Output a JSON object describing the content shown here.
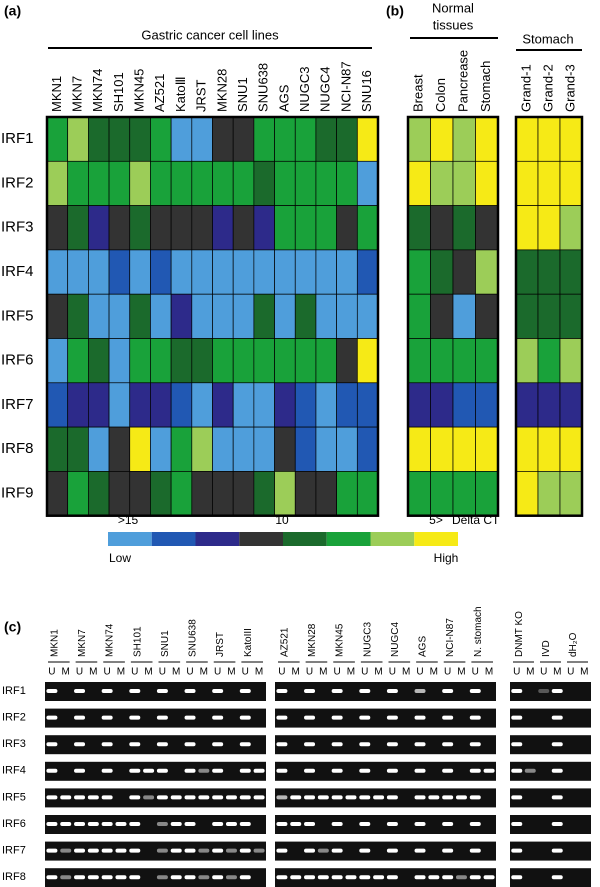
{
  "panel_a": {
    "label": "(a)",
    "title": "Gastric cancer cell lines",
    "columns": [
      "MKN1",
      "MKN7",
      "MKN74",
      "SH101",
      "MKN45",
      "AZ521",
      "KatoⅢ",
      "JRST",
      "MKN28",
      "SNU1",
      "SNU638",
      "AGS",
      "NUGC3",
      "NUGC4",
      "NCI-N87",
      "SNU16"
    ],
    "rows": [
      "IRF1",
      "IRF2",
      "IRF3",
      "IRF4",
      "IRF5",
      "IRF6",
      "IRF7",
      "IRF8",
      "IRF9"
    ],
    "levels": [
      [
        5,
        6,
        4,
        4,
        4,
        5,
        0,
        0,
        3,
        3,
        5,
        5,
        5,
        4,
        4,
        7
      ],
      [
        6,
        5,
        5,
        5,
        6,
        5,
        5,
        5,
        5,
        5,
        4,
        5,
        5,
        5,
        5,
        0
      ],
      [
        3,
        4,
        2,
        3,
        4,
        3,
        3,
        3,
        2,
        3,
        2,
        5,
        5,
        5,
        3,
        5
      ],
      [
        0,
        0,
        0,
        1,
        0,
        1,
        0,
        0,
        0,
        0,
        0,
        0,
        0,
        0,
        0,
        1
      ],
      [
        3,
        4,
        0,
        0,
        4,
        0,
        2,
        0,
        0,
        0,
        4,
        0,
        4,
        0,
        0,
        0
      ],
      [
        0,
        5,
        4,
        0,
        5,
        5,
        4,
        4,
        5,
        5,
        5,
        5,
        5,
        5,
        3,
        7
      ],
      [
        1,
        2,
        2,
        0,
        2,
        2,
        1,
        0,
        2,
        0,
        0,
        2,
        1,
        0,
        1,
        1
      ],
      [
        4,
        4,
        0,
        3,
        7,
        0,
        5,
        6,
        0,
        0,
        0,
        3,
        1,
        0,
        0,
        1
      ],
      [
        3,
        5,
        4,
        3,
        3,
        4,
        5,
        3,
        3,
        3,
        4,
        6,
        3,
        3,
        5,
        5
      ]
    ]
  },
  "panel_b": {
    "label": "(b)",
    "title": [
      "Normal",
      "tissues"
    ],
    "columns": [
      "Breast",
      "Colon",
      "Pancrease",
      "Stomach"
    ],
    "levels": [
      [
        6,
        7,
        6,
        7
      ],
      [
        7,
        6,
        6,
        7
      ],
      [
        4,
        3,
        4,
        3
      ],
      [
        5,
        4,
        3,
        6
      ],
      [
        5,
        3,
        0,
        3
      ],
      [
        5,
        5,
        5,
        5
      ],
      [
        2,
        2,
        1,
        1
      ],
      [
        7,
        7,
        7,
        7
      ],
      [
        5,
        5,
        5,
        5
      ]
    ]
  },
  "panel_stomach": {
    "title": "Stomach",
    "columns": [
      "Grand-1",
      "Grand-2",
      "Grand-3"
    ],
    "levels": [
      [
        7,
        7,
        7
      ],
      [
        7,
        7,
        7
      ],
      [
        7,
        7,
        6
      ],
      [
        4,
        4,
        4
      ],
      [
        4,
        4,
        4
      ],
      [
        6,
        5,
        6
      ],
      [
        2,
        2,
        2
      ],
      [
        7,
        7,
        7
      ],
      [
        7,
        6,
        6
      ]
    ]
  },
  "legend": {
    "colors": [
      "#4f9edb",
      "#2158b3",
      "#2d2a8a",
      "#333333",
      "#1b6a2c",
      "#19a23a",
      "#9ccd58",
      "#f6ea16"
    ],
    "tick_labels": [
      ">15",
      "10",
      "5>"
    ],
    "unit": "Delta CT",
    "low": "Low",
    "high": "High"
  },
  "panel_c": {
    "label": "(c)",
    "rows": [
      "IRF1",
      "IRF2",
      "IRF3",
      "IRF4",
      "IRF5",
      "IRF6",
      "IRF7",
      "IRF8"
    ],
    "lane_sub": [
      "U",
      "M"
    ],
    "groups": [
      {
        "lanes": [
          "MKN1",
          "MKN7",
          "MKN74",
          "SH101",
          "SNU1",
          "SNU638",
          "JRST",
          "KatoIII"
        ],
        "bands": [
          [
            1,
            0,
            1,
            0,
            1,
            0,
            1,
            0,
            1,
            0,
            1,
            0,
            1,
            0,
            1,
            0
          ],
          [
            1,
            0,
            1,
            0,
            1,
            0,
            1,
            0,
            1,
            0,
            1,
            0,
            1,
            0,
            1,
            0
          ],
          [
            1,
            0,
            1,
            0,
            1,
            0,
            1,
            0,
            1,
            0,
            1,
            0,
            1,
            0,
            1,
            0
          ],
          [
            1,
            0,
            1,
            0,
            1,
            0,
            1,
            1,
            1,
            0,
            1,
            0.5,
            1,
            0,
            1,
            1
          ],
          [
            1,
            1,
            1,
            1,
            1,
            0,
            1,
            0.5,
            1,
            1,
            1,
            1,
            1,
            1,
            1,
            1
          ],
          [
            1,
            1,
            1,
            1,
            1,
            1,
            1,
            0,
            0.5,
            1,
            1,
            0,
            1,
            1,
            1,
            0
          ],
          [
            1,
            0.5,
            1,
            1,
            1,
            1,
            1,
            0,
            0.5,
            1,
            1,
            0.5,
            1,
            0.5,
            1,
            0.5
          ],
          [
            1,
            0.5,
            1,
            1,
            1,
            1,
            1,
            0,
            0.5,
            1,
            1,
            0.5,
            1,
            0.5,
            1,
            0
          ]
        ]
      },
      {
        "lanes": [
          "AZ521",
          "MKN28",
          "MKN45",
          "NUGC3",
          "NUGC4",
          "AGS",
          "NCI-N87",
          "N. stomach"
        ],
        "bands": [
          [
            1,
            0,
            1,
            0,
            1,
            0,
            1,
            0,
            1,
            0,
            0.7,
            0,
            1,
            0,
            1,
            0
          ],
          [
            1,
            0,
            1,
            0,
            1,
            0,
            1,
            0,
            1,
            0,
            1,
            0,
            1,
            0,
            1,
            0
          ],
          [
            1,
            0,
            1,
            0,
            1,
            0,
            1,
            0,
            1,
            0,
            1,
            0,
            1,
            0,
            1,
            0
          ],
          [
            1,
            0,
            1,
            0,
            1,
            0,
            1,
            0,
            1,
            0,
            1,
            0,
            1,
            0,
            1,
            1
          ],
          [
            0.7,
            1,
            1,
            1,
            1,
            1,
            1,
            1,
            1,
            0,
            1,
            1,
            1,
            1,
            1,
            0
          ],
          [
            1,
            1,
            1,
            0,
            1,
            0,
            1,
            0,
            1,
            0,
            1,
            0,
            1,
            0,
            1,
            0
          ],
          [
            1,
            0,
            1,
            0.5,
            1,
            0,
            1,
            0,
            1,
            0,
            1,
            0,
            1,
            0,
            1,
            0
          ],
          [
            1,
            1,
            1,
            1,
            1,
            1,
            1,
            1,
            1,
            0,
            1,
            1,
            1,
            0.5,
            1,
            1
          ]
        ]
      },
      {
        "lanes": [
          "DNMT KO",
          "IVD",
          "dH₂O"
        ],
        "bands": [
          [
            1,
            0,
            0.3,
            1,
            0,
            0
          ],
          [
            1,
            0,
            0,
            1,
            0,
            0
          ],
          [
            1,
            0,
            0,
            1,
            0,
            0
          ],
          [
            1,
            0.5,
            0,
            1,
            0,
            0
          ],
          [
            1,
            0,
            0,
            1,
            0,
            0
          ],
          [
            1,
            0,
            0,
            1,
            0,
            0
          ],
          [
            1,
            0,
            0,
            1,
            0,
            0
          ],
          [
            1,
            0,
            0,
            1,
            0,
            0
          ]
        ]
      }
    ]
  }
}
